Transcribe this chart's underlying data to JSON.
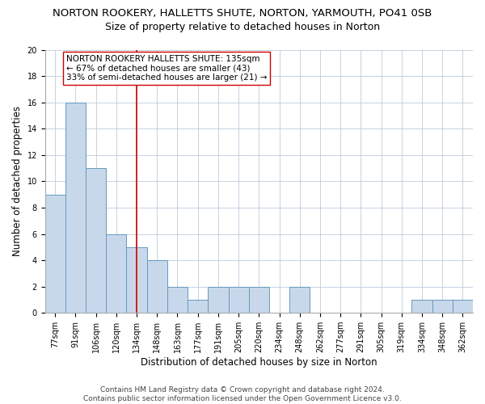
{
  "title": "NORTON ROOKERY, HALLETTS SHUTE, NORTON, YARMOUTH, PO41 0SB",
  "subtitle": "Size of property relative to detached houses in Norton",
  "xlabel": "Distribution of detached houses by size in Norton",
  "ylabel": "Number of detached properties",
  "categories": [
    "77sqm",
    "91sqm",
    "106sqm",
    "120sqm",
    "134sqm",
    "148sqm",
    "163sqm",
    "177sqm",
    "191sqm",
    "205sqm",
    "220sqm",
    "234sqm",
    "248sqm",
    "262sqm",
    "277sqm",
    "291sqm",
    "305sqm",
    "319sqm",
    "334sqm",
    "348sqm",
    "362sqm"
  ],
  "values": [
    9,
    16,
    11,
    6,
    5,
    4,
    2,
    1,
    2,
    2,
    2,
    0,
    2,
    0,
    0,
    0,
    0,
    0,
    1,
    1,
    1
  ],
  "bar_color": "#c8d8eb",
  "bar_edge_color": "#6699bb",
  "bar_linewidth": 0.7,
  "vline_x": 4,
  "vline_color": "#cc0000",
  "vline_linewidth": 1.2,
  "annotation_box_text": "NORTON ROOKERY HALLETTS SHUTE: 135sqm\n← 67% of detached houses are smaller (43)\n33% of semi-detached houses are larger (21) →",
  "box_edge_color": "#cc0000",
  "ylim": [
    0,
    20
  ],
  "yticks": [
    0,
    2,
    4,
    6,
    8,
    10,
    12,
    14,
    16,
    18,
    20
  ],
  "grid_color": "#bbccdd",
  "background_color": "#ffffff",
  "footer_text": "Contains HM Land Registry data © Crown copyright and database right 2024.\nContains public sector information licensed under the Open Government Licence v3.0.",
  "title_fontsize": 9.5,
  "subtitle_fontsize": 9,
  "ylabel_fontsize": 8.5,
  "xlabel_fontsize": 8.5,
  "tick_fontsize": 7,
  "annotation_fontsize": 7.5,
  "footer_fontsize": 6.5
}
